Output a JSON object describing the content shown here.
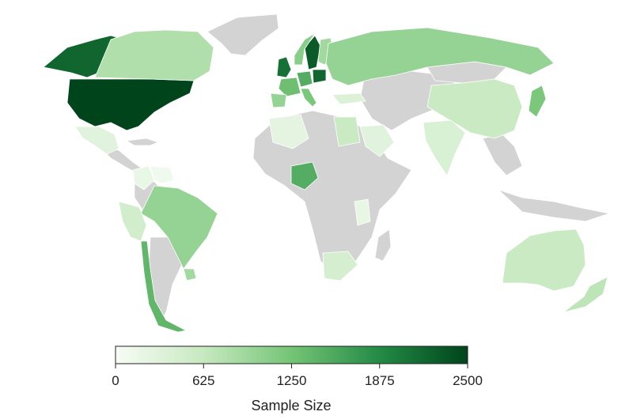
{
  "chart_data": {
    "type": "choropleth",
    "xlabel": "Sample Size",
    "colorbar": {
      "min": 0,
      "max": 2500,
      "ticks": [
        0,
        625,
        1250,
        1875,
        2500
      ],
      "colors": [
        "#f7fcf5",
        "#c7e9c0",
        "#74c476",
        "#238b45",
        "#00441b"
      ]
    },
    "no_data_color": "#d3d3d3",
    "regions": [
      {
        "name": "United States",
        "value": 2500
      },
      {
        "name": "Alaska",
        "value": 2200
      },
      {
        "name": "Canada",
        "value": 800
      },
      {
        "name": "Mexico",
        "value": 300
      },
      {
        "name": "Colombia",
        "value": 180
      },
      {
        "name": "Venezuela",
        "value": 100
      },
      {
        "name": "Brazil",
        "value": 1000
      },
      {
        "name": "Peru",
        "value": 500
      },
      {
        "name": "Argentina",
        "value": 0
      },
      {
        "name": "Chile",
        "value": 1400
      },
      {
        "name": "Uruguay",
        "value": 900
      },
      {
        "name": "United Kingdom",
        "value": 2100
      },
      {
        "name": "Germany",
        "value": 1500
      },
      {
        "name": "Poland",
        "value": 2200
      },
      {
        "name": "Sweden",
        "value": 2300
      },
      {
        "name": "Norway",
        "value": 1100
      },
      {
        "name": "Finland",
        "value": 900
      },
      {
        "name": "France",
        "value": 1300
      },
      {
        "name": "Spain",
        "value": 1000
      },
      {
        "name": "Italy",
        "value": 1200
      },
      {
        "name": "Russia",
        "value": 1000
      },
      {
        "name": "China",
        "value": 600
      },
      {
        "name": "India",
        "value": 400
      },
      {
        "name": "Japan",
        "value": 1200
      },
      {
        "name": "Australia",
        "value": 600
      },
      {
        "name": "New Zealand",
        "value": 700
      },
      {
        "name": "Nigeria",
        "value": 1500
      },
      {
        "name": "South Africa",
        "value": 450
      },
      {
        "name": "Kenya",
        "value": 200
      },
      {
        "name": "Egypt",
        "value": 600
      },
      {
        "name": "Algeria",
        "value": 250
      },
      {
        "name": "Saudi Arabia",
        "value": 300
      },
      {
        "name": "Turkey",
        "value": 350
      }
    ]
  }
}
